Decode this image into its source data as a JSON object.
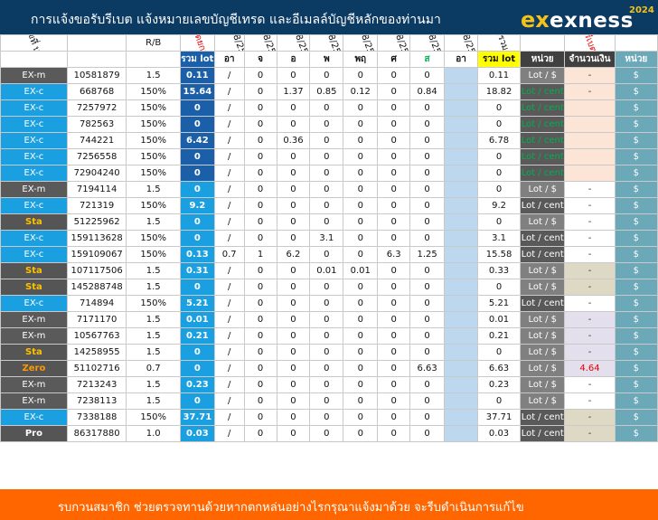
{
  "header": {
    "title": "การแจ้งขอรับรีเบต  แจ้งหมายเลขบัญชีเทรด และอีเมลล์บัญชีหลักของท่านมา",
    "logo_mark": "ex",
    "logo_word": "exness",
    "year": "2024"
  },
  "columns": {
    "type_head": "เลขที่ บ/ช",
    "rb_head": "R/B",
    "total_head": "ยอดยกมา",
    "dates": [
      "18/8/2567",
      "19/8/2567",
      "20/8/2567",
      "21/8/2567",
      "22/8/2567",
      "23/8/2567",
      "24/8/2567",
      "25/8/2567"
    ],
    "sum_lot_head": "ยอดรวม Lot",
    "rebate_head": "รีเบต"
  },
  "subheader": {
    "sum_lot": "รวม lot",
    "days": [
      "อา",
      "จ",
      "อ",
      "พ",
      "พฤ",
      "ศ",
      "ส",
      "อา"
    ],
    "sum_lot2": "รวม lot",
    "unit": "หน่วย",
    "amount": "จำนวนเงิน",
    "unit2": "หน่วย"
  },
  "rows": [
    {
      "type": "EX-m",
      "tcls": "type-m",
      "acct": "10581879",
      "rb": "1.5",
      "total": "0.11",
      "ttone": "dk",
      "d0": "/",
      "d": [
        "0",
        "0",
        "0",
        "0",
        "0",
        "0"
      ],
      "sun": "",
      "sum": "0.11",
      "unit": "Lot / $",
      "ucls": "unit-d",
      "amt": "-",
      "acls": "amt-peach",
      "amtred": false,
      "dol": "$"
    },
    {
      "type": "EX-c",
      "tcls": "type-c",
      "acct": "668768",
      "rb": "150%",
      "total": "15.64",
      "ttone": "dk",
      "d0": "/",
      "d": [
        "0",
        "1.37",
        "0.85",
        "0.12",
        "0",
        "0.84"
      ],
      "sun": "",
      "sum": "18.82",
      "unit": "Lot / cent",
      "ucls": "unit-c",
      "amt": "-",
      "acls": "amt-peach",
      "amtred": false,
      "dol": "$"
    },
    {
      "type": "EX-c",
      "tcls": "type-c",
      "acct": "7257972",
      "rb": "150%",
      "total": "0",
      "ttone": "dk",
      "d0": "/",
      "d": [
        "0",
        "0",
        "0",
        "0",
        "0",
        "0"
      ],
      "sun": "",
      "sum": "0",
      "unit": "Lot / cent",
      "ucls": "unit-c",
      "amt": "",
      "acls": "amt-peach",
      "amtred": false,
      "dol": "$"
    },
    {
      "type": "EX-c",
      "tcls": "type-c",
      "acct": "782563",
      "rb": "150%",
      "total": "0",
      "ttone": "dk",
      "d0": "/",
      "d": [
        "0",
        "0",
        "0",
        "0",
        "0",
        "0"
      ],
      "sun": "",
      "sum": "0",
      "unit": "Lot / cent",
      "ucls": "unit-c",
      "amt": "",
      "acls": "amt-peach",
      "amtred": false,
      "dol": "$"
    },
    {
      "type": "EX-c",
      "tcls": "type-c",
      "acct": "744221",
      "rb": "150%",
      "total": "6.42",
      "ttone": "dk",
      "d0": "/",
      "d": [
        "0",
        "0.36",
        "0",
        "0",
        "0",
        "0"
      ],
      "sun": "",
      "sum": "6.78",
      "unit": "Lot / cent",
      "ucls": "unit-c",
      "amt": "",
      "acls": "amt-peach",
      "amtred": false,
      "dol": "$"
    },
    {
      "type": "EX-c",
      "tcls": "type-c",
      "acct": "7256558",
      "rb": "150%",
      "total": "0",
      "ttone": "dk",
      "d0": "/",
      "d": [
        "0",
        "0",
        "0",
        "0",
        "0",
        "0"
      ],
      "sun": "",
      "sum": "0",
      "unit": "Lot / cent",
      "ucls": "unit-c",
      "amt": "",
      "acls": "amt-peach",
      "amtred": false,
      "dol": "$"
    },
    {
      "type": "EX-c",
      "tcls": "type-c",
      "acct": "72904240",
      "rb": "150%",
      "total": "0",
      "ttone": "dk",
      "d0": "/",
      "d": [
        "0",
        "0",
        "0",
        "0",
        "0",
        "0"
      ],
      "sun": "",
      "sum": "0",
      "unit": "Lot / cent",
      "ucls": "unit-c",
      "amt": "",
      "acls": "amt-peach",
      "amtred": false,
      "dol": "$"
    },
    {
      "type": "EX-m",
      "tcls": "type-m",
      "acct": "7194114",
      "rb": "1.5",
      "total": "0",
      "ttone": "lt",
      "d0": "/",
      "d": [
        "0",
        "0",
        "0",
        "0",
        "0",
        "0"
      ],
      "sun": "",
      "sum": "0",
      "unit": "Lot / $",
      "ucls": "unit-d",
      "amt": "-",
      "acls": "amt-w",
      "amtred": false,
      "dol": "$"
    },
    {
      "type": "EX-c",
      "tcls": "type-c",
      "acct": "721319",
      "rb": "150%",
      "total": "9.2",
      "ttone": "lt",
      "d0": "/",
      "d": [
        "0",
        "0",
        "0",
        "0",
        "0",
        "0"
      ],
      "sun": "",
      "sum": "9.2",
      "unit": "Lot / cent",
      "ucls": "unit-w",
      "amt": "-",
      "acls": "amt-w",
      "amtred": false,
      "dol": "$"
    },
    {
      "type": "Sta",
      "tcls": "type-sta",
      "acct": "51225962",
      "rb": "1.5",
      "total": "0",
      "ttone": "lt",
      "d0": "/",
      "d": [
        "0",
        "0",
        "0",
        "0",
        "0",
        "0"
      ],
      "sun": "",
      "sum": "0",
      "unit": "Lot / $",
      "ucls": "unit-d",
      "amt": "-",
      "acls": "amt-w",
      "amtred": false,
      "dol": "$"
    },
    {
      "type": "EX-c",
      "tcls": "type-c",
      "acct": "159113628",
      "rb": "150%",
      "total": "0",
      "ttone": "lt",
      "d0": "/",
      "d": [
        "0",
        "0",
        "3.1",
        "0",
        "0",
        "0"
      ],
      "sun": "",
      "sum": "3.1",
      "unit": "Lot / cent",
      "ucls": "unit-w",
      "amt": "-",
      "acls": "amt-w",
      "amtred": false,
      "dol": "$"
    },
    {
      "type": "EX-c",
      "tcls": "type-c",
      "acct": "159109067",
      "rb": "150%",
      "total": "0.13",
      "ttone": "lt",
      "d0": "0.7",
      "d": [
        "1",
        "6.2",
        "0",
        "0",
        "6.3",
        "1.25"
      ],
      "sun": "",
      "sum": "15.58",
      "unit": "Lot / cent",
      "ucls": "unit-w",
      "amt": "-",
      "acls": "amt-w",
      "amtred": false,
      "dol": "$"
    },
    {
      "type": "Sta",
      "tcls": "type-sta",
      "acct": "107117506",
      "rb": "1.5",
      "total": "0.31",
      "ttone": "lt",
      "d0": "/",
      "d": [
        "0",
        "0",
        "0.01",
        "0.01",
        "0",
        "0"
      ],
      "sun": "",
      "sum": "0.33",
      "unit": "Lot / $",
      "ucls": "unit-d",
      "amt": "-",
      "acls": "amt-tan",
      "amtred": false,
      "dol": "$"
    },
    {
      "type": "Sta",
      "tcls": "type-sta",
      "acct": "145288748",
      "rb": "1.5",
      "total": "0",
      "ttone": "lt",
      "d0": "/",
      "d": [
        "0",
        "0",
        "0",
        "0",
        "0",
        "0"
      ],
      "sun": "",
      "sum": "0",
      "unit": "Lot / $",
      "ucls": "unit-d",
      "amt": "-",
      "acls": "amt-tan",
      "amtred": false,
      "dol": "$"
    },
    {
      "type": "EX-c",
      "tcls": "type-c",
      "acct": "714894",
      "rb": "150%",
      "total": "5.21",
      "ttone": "lt",
      "d0": "/",
      "d": [
        "0",
        "0",
        "0",
        "0",
        "0",
        "0"
      ],
      "sun": "",
      "sum": "5.21",
      "unit": "Lot / cent",
      "ucls": "unit-w",
      "amt": "-",
      "acls": "amt-w",
      "amtred": false,
      "dol": "$"
    },
    {
      "type": "EX-m",
      "tcls": "type-m",
      "acct": "7171170",
      "rb": "1.5",
      "total": "0.01",
      "ttone": "lt",
      "d0": "/",
      "d": [
        "0",
        "0",
        "0",
        "0",
        "0",
        "0"
      ],
      "sun": "",
      "sum": "0.01",
      "unit": "Lot / $",
      "ucls": "unit-d",
      "amt": "-",
      "acls": "amt-lav",
      "amtred": false,
      "dol": "$"
    },
    {
      "type": "EX-m",
      "tcls": "type-m",
      "acct": "10567763",
      "rb": "1.5",
      "total": "0.21",
      "ttone": "lt",
      "d0": "/",
      "d": [
        "0",
        "0",
        "0",
        "0",
        "0",
        "0"
      ],
      "sun": "",
      "sum": "0.21",
      "unit": "Lot / $",
      "ucls": "unit-d",
      "amt": "-",
      "acls": "amt-lav",
      "amtred": false,
      "dol": "$"
    },
    {
      "type": "Sta",
      "tcls": "type-sta",
      "acct": "14258955",
      "rb": "1.5",
      "total": "0",
      "ttone": "lt",
      "d0": "/",
      "d": [
        "0",
        "0",
        "0",
        "0",
        "0",
        "0"
      ],
      "sun": "",
      "sum": "0",
      "unit": "Lot / $",
      "ucls": "unit-d",
      "amt": "-",
      "acls": "amt-lav",
      "amtred": false,
      "dol": "$"
    },
    {
      "type": "Zero",
      "tcls": "type-zero",
      "acct": "51102716",
      "rb": "0.7",
      "total": "0",
      "ttone": "lt",
      "d0": "/",
      "d": [
        "0",
        "0",
        "0",
        "0",
        "0",
        "6.63"
      ],
      "sun": "",
      "sum": "6.63",
      "unit": "Lot / $",
      "ucls": "unit-d",
      "amt": "4.64",
      "acls": "amt-lav",
      "amtred": true,
      "dol": "$"
    },
    {
      "type": "EX-m",
      "tcls": "type-m",
      "acct": "7213243",
      "rb": "1.5",
      "total": "0.23",
      "ttone": "lt",
      "d0": "/",
      "d": [
        "0",
        "0",
        "0",
        "0",
        "0",
        "0"
      ],
      "sun": "",
      "sum": "0.23",
      "unit": "Lot / $",
      "ucls": "unit-d",
      "amt": "-",
      "acls": "amt-w",
      "amtred": false,
      "dol": "$"
    },
    {
      "type": "EX-m",
      "tcls": "type-m",
      "acct": "7238113",
      "rb": "1.5",
      "total": "0",
      "ttone": "lt",
      "d0": "/",
      "d": [
        "0",
        "0",
        "0",
        "0",
        "0",
        "0"
      ],
      "sun": "",
      "sum": "0",
      "unit": "Lot / $",
      "ucls": "unit-d",
      "amt": "-",
      "acls": "amt-w",
      "amtred": false,
      "dol": "$"
    },
    {
      "type": "EX-c",
      "tcls": "type-c",
      "acct": "7338188",
      "rb": "150%",
      "total": "37.71",
      "ttone": "lt",
      "d0": "/",
      "d": [
        "0",
        "0",
        "0",
        "0",
        "0",
        "0"
      ],
      "sun": "",
      "sum": "37.71",
      "unit": "Lot / cent",
      "ucls": "unit-w",
      "amt": "-",
      "acls": "amt-tan",
      "amtred": false,
      "dol": "$"
    },
    {
      "type": "Pro",
      "tcls": "type-pro",
      "acct": "86317880",
      "rb": "1.0",
      "total": "0.03",
      "ttone": "lt",
      "d0": "/",
      "d": [
        "0",
        "0",
        "0",
        "0",
        "0",
        "0"
      ],
      "sun": "",
      "sum": "0.03",
      "unit": "Lot / cent",
      "ucls": "unit-w",
      "amt": "-",
      "acls": "amt-tan",
      "amtred": false,
      "dol": "$"
    }
  ],
  "footer": {
    "text": "รบกวนสมาชิก ช่วยตรวจทานด้วยหากตกหล่นอย่างไรกรุณาแจ้งมาด้วย จะรีบดำเนินการแก้ไข"
  }
}
